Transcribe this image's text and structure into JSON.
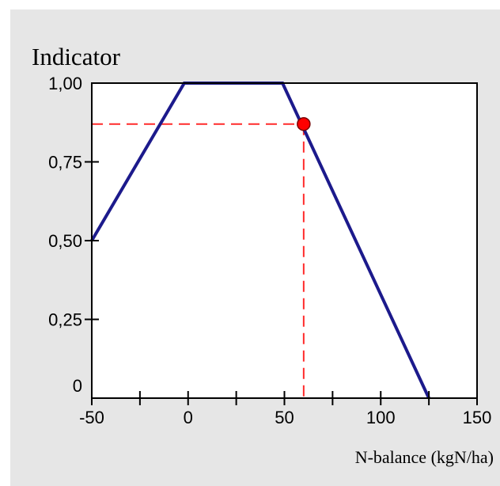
{
  "chart_data": {
    "type": "line",
    "title": "",
    "ylabel": "Indicator",
    "xlabel": "N-balance (kgN/ha)",
    "xlim": [
      -50,
      150
    ],
    "ylim": [
      0,
      1
    ],
    "x_ticks": [
      -50,
      0,
      50,
      100,
      150
    ],
    "x_tick_labels": [
      "-50",
      "0",
      "50",
      "100",
      "150"
    ],
    "x_minor_ticks": [
      -25,
      25,
      75,
      125
    ],
    "y_ticks": [
      0,
      0.25,
      0.5,
      0.75,
      1
    ],
    "y_tick_labels": [
      "0",
      "0,25",
      "0,50",
      "0,75",
      "1,00"
    ],
    "series": [
      {
        "color": "#1c1a8c",
        "x": [
          -50,
          -2,
          49,
          125
        ],
        "y": [
          0.5,
          1.0,
          1.0,
          0.0
        ]
      }
    ],
    "highlight_point": {
      "x": 60,
      "y": 0.87,
      "color": "#ff0000"
    },
    "reference_line_color": "#ff2a2a",
    "grid": false,
    "legend": "none"
  }
}
